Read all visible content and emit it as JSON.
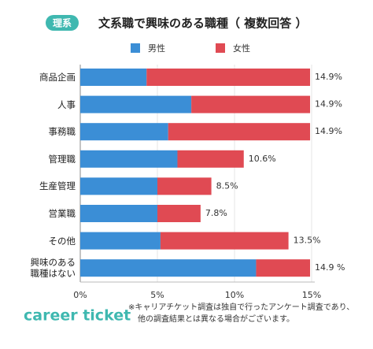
{
  "badge": "理系",
  "chart_data": {
    "type": "stacked-bar-horizontal",
    "title": "文系職で興味のある職種（ 複数回答 ）",
    "categories": [
      "商品企画",
      "人事",
      "事務職",
      "管理職",
      "生産管理",
      "営業職",
      "その他",
      "興味のある\n職種はない"
    ],
    "series": [
      {
        "name": "男性",
        "color": "#3b8ed6",
        "values": [
          4.3,
          7.2,
          5.7,
          6.3,
          5.0,
          5.0,
          5.2,
          11.4
        ]
      },
      {
        "name": "女性",
        "color": "#e04a53",
        "values": [
          10.6,
          7.7,
          9.2,
          4.3,
          3.5,
          2.8,
          8.3,
          3.5
        ]
      }
    ],
    "totals": [
      14.9,
      14.9,
      14.9,
      10.6,
      8.5,
      7.8,
      13.5,
      14.9
    ],
    "total_labels": [
      "14.9%",
      "14.9%",
      "14.9%",
      "10.6%",
      "8.5%",
      "7.8%",
      "13.5%",
      "14.9 %"
    ],
    "xlim": [
      0,
      15
    ],
    "xticks": [
      {
        "value": 0,
        "label": "0%"
      },
      {
        "value": 5,
        "label": "5%"
      },
      {
        "value": 10,
        "label": "10%"
      },
      {
        "value": 15,
        "label": "15%"
      }
    ],
    "grid": true
  },
  "footer": {
    "logo": "career ticket",
    "note": [
      "※キャリアチケット調査は独自で行ったアンケート調査であり、",
      "他の調査結果とは異なる場合がございます。"
    ]
  }
}
